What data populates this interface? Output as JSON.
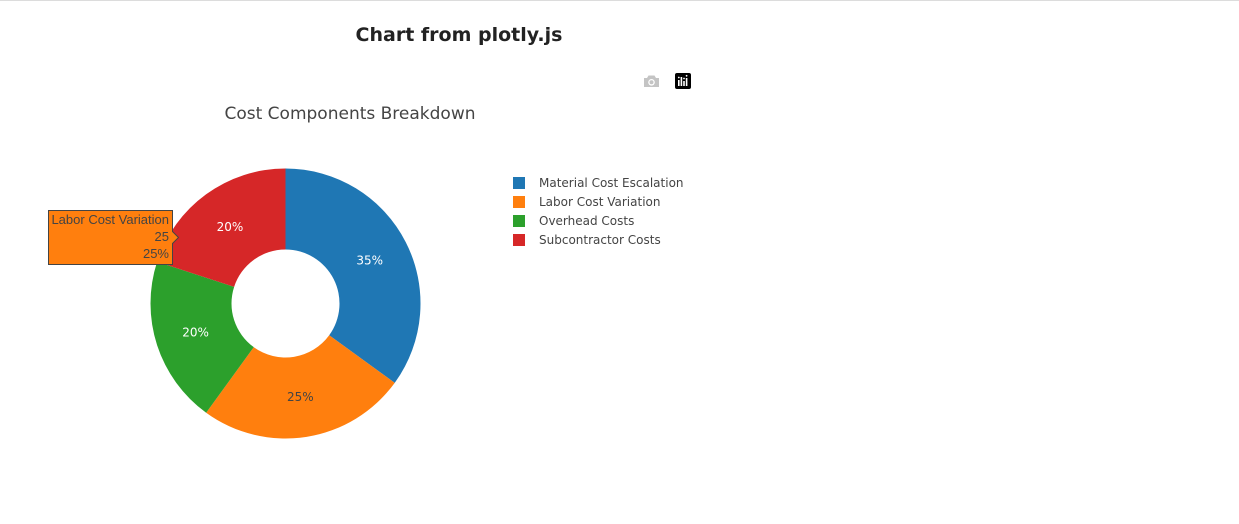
{
  "page": {
    "title": "Chart from plotly.js"
  },
  "modebar": {
    "camera_icon": "camera-icon",
    "plotly_logo_icon": "plotly-logo-icon"
  },
  "colors": {
    "material": "#1f77b4",
    "labor": "#ff7f0e",
    "overhead": "#2ca02c",
    "subcontractor": "#d62728"
  },
  "chart_data": {
    "type": "pie",
    "hole": 0.4,
    "title": "Cost Components Breakdown",
    "labels": [
      "Material Cost Escalation",
      "Labor Cost Variation",
      "Overhead Costs",
      "Subcontractor Costs"
    ],
    "values": [
      35,
      25,
      20,
      20
    ],
    "slice_labels": [
      "35%",
      "25%",
      "20%",
      "20%"
    ],
    "colors": [
      "#1f77b4",
      "#ff7f0e",
      "#2ca02c",
      "#d62728"
    ],
    "legend": {
      "position": "right",
      "entries": [
        "Material Cost Escalation",
        "Labor Cost Variation",
        "Overhead Costs",
        "Subcontractor Costs"
      ]
    },
    "hover": {
      "label": "Labor Cost Variation",
      "value": "25",
      "percent": "25%"
    }
  }
}
